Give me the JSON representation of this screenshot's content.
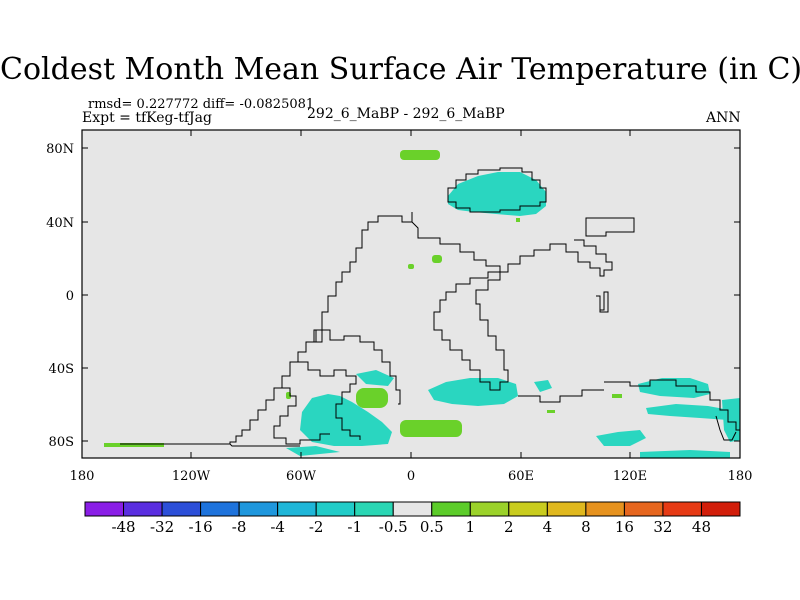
{
  "title": "Coldest Month Mean Surface Air Temperature (in C)",
  "stats": "rmsd= 0.227772 diff= -0.0825081",
  "experiment": "Expt = tfKeg-tfJag",
  "comparison": "292_6_MaBP - 292_6_MaBP",
  "period": "ANN",
  "lon_ticks": [
    "180",
    "120W",
    "60W",
    "0",
    "60E",
    "120E",
    "180"
  ],
  "lat_ticks": [
    "80N",
    "40N",
    "0",
    "40S",
    "80S"
  ],
  "colorbar": {
    "labels": [
      "-48",
      "-32",
      "-16",
      "-8",
      "-4",
      "-2",
      "-1",
      "-0.5",
      "0.5",
      "1",
      "2",
      "4",
      "8",
      "16",
      "32",
      "48"
    ],
    "colors": [
      "#8a1ee6",
      "#5a2ee0",
      "#2c4fd8",
      "#1e73dc",
      "#1f97dd",
      "#1fb6d8",
      "#21ccc8",
      "#2ad6b4",
      "#e6e6e6",
      "#5ccc2a",
      "#9bd22a",
      "#c9cc1e",
      "#e0b81e",
      "#e6921e",
      "#e6661e",
      "#e63a14",
      "#d21e0a"
    ]
  },
  "map": {
    "background": "#e6e6e6",
    "cyan": "#2ad6c0",
    "green": "#6ad12a"
  }
}
